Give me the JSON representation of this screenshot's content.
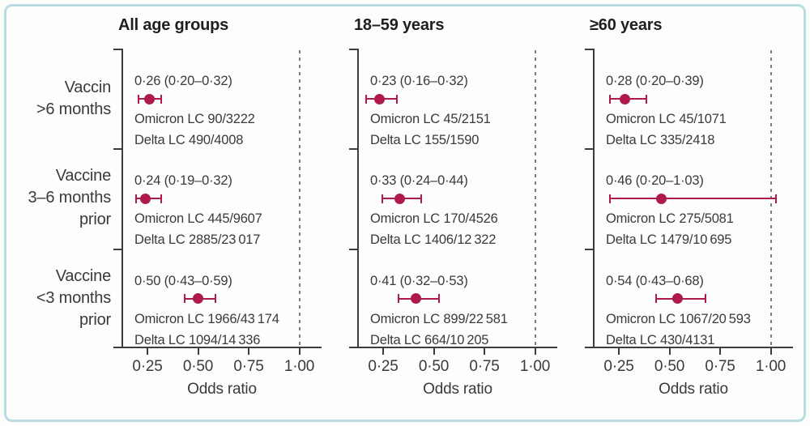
{
  "chart_data": {
    "type": "scatter",
    "subtype": "forest-plot",
    "xlabel": "Odds ratio",
    "x_ticks": [
      0.25,
      0.5,
      0.75,
      1.0
    ],
    "x_tick_labels": [
      "0·25",
      "0·50",
      "0·75",
      "1·00"
    ],
    "xlim": [
      0.13,
      1.06
    ],
    "reference_line_x": 1.0,
    "grid": false,
    "legend_position": "none",
    "marker_color": "#ae1a4d",
    "row_groups": [
      {
        "lines": [
          "Vaccin",
          ">6 months"
        ]
      },
      {
        "lines": [
          "Vaccine",
          "3–6 months",
          "prior"
        ]
      },
      {
        "lines": [
          "Vaccine",
          "<3 months",
          "prior"
        ]
      }
    ],
    "panels": [
      {
        "title": "All age groups",
        "rows": [
          {
            "or": 0.26,
            "ci_low": 0.2,
            "ci_high": 0.32,
            "label": "0·26 (0·20–0·32)",
            "omicron": "Omicron LC 90/3222",
            "delta": "Delta LC 490/4008"
          },
          {
            "or": 0.24,
            "ci_low": 0.19,
            "ci_high": 0.32,
            "label": "0·24 (0·19–0·32)",
            "omicron": "Omicron LC 445/9607",
            "delta": "Delta LC 2885/23 017"
          },
          {
            "or": 0.5,
            "ci_low": 0.43,
            "ci_high": 0.59,
            "label": "0·50 (0·43–0·59)",
            "omicron": "Omicron LC 1966/43 174",
            "delta": "Delta LC 1094/14 336"
          }
        ]
      },
      {
        "title": "18–59 years",
        "rows": [
          {
            "or": 0.23,
            "ci_low": 0.16,
            "ci_high": 0.32,
            "label": "0·23 (0·16–0·32)",
            "omicron": "Omicron LC 45/2151",
            "delta": "Delta LC 155/1590"
          },
          {
            "or": 0.33,
            "ci_low": 0.24,
            "ci_high": 0.44,
            "label": "0·33 (0·24–0·44)",
            "omicron": "Omicron LC 170/4526",
            "delta": "Delta LC 1406/12 322"
          },
          {
            "or": 0.41,
            "ci_low": 0.32,
            "ci_high": 0.53,
            "label": "0·41 (0·32–0·53)",
            "omicron": "Omicron LC 899/22 581",
            "delta": "Delta LC 664/10 205"
          }
        ]
      },
      {
        "title": "≥60 years",
        "rows": [
          {
            "or": 0.28,
            "ci_low": 0.2,
            "ci_high": 0.39,
            "label": "0·28 (0·20–0·39)",
            "omicron": "Omicron LC 45/1071",
            "delta": "Delta LC 335/2418"
          },
          {
            "or": 0.46,
            "ci_low": 0.2,
            "ci_high": 1.03,
            "label": "0·46 (0·20–1·03)",
            "omicron": "Omicron LC 275/5081",
            "delta": "Delta LC 1479/10 695"
          },
          {
            "or": 0.54,
            "ci_low": 0.43,
            "ci_high": 0.68,
            "label": "0·54 (0·43–0·68)",
            "omicron": "Omicron LC 1067/20 593",
            "delta": "Delta LC 430/4131"
          }
        ]
      }
    ]
  }
}
